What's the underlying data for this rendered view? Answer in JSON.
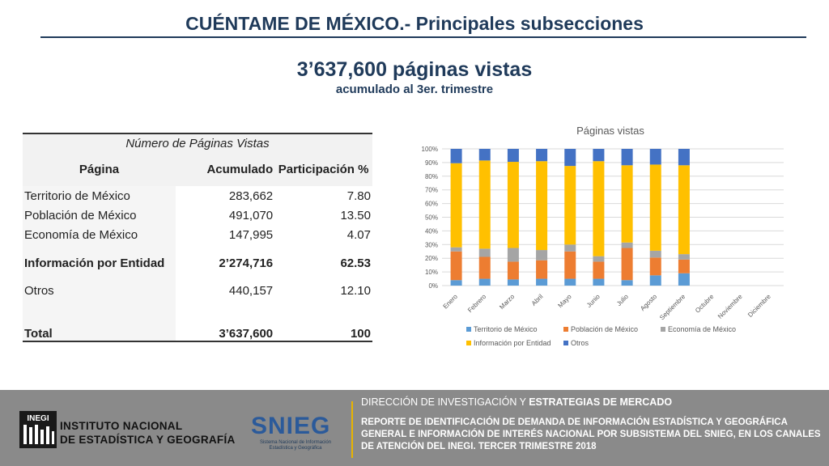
{
  "header": {
    "title": "CUÉNTAME DE MÉXICO.- Principales subsecciones",
    "headline": "3’637,600 páginas vistas",
    "subline": "acumulado al 3er. trimestre"
  },
  "table": {
    "group_header": "Número de Páginas Vistas",
    "columns": [
      "Página",
      "Acumulado",
      "Participación %"
    ],
    "rows": [
      {
        "page": "Territorio de México",
        "acumulado": "283,662",
        "participacion": "7.80"
      },
      {
        "page": "Población de México",
        "acumulado": "491,070",
        "participacion": "13.50"
      },
      {
        "page": "Economía de México",
        "acumulado": "147,995",
        "participacion": "4.07"
      },
      {
        "page": "Información por Entidad",
        "acumulado": "2’274,716",
        "participacion": "62.53"
      },
      {
        "page": "Otros",
        "acumulado": "440,157",
        "participacion": "12.10"
      }
    ],
    "total": {
      "page": "Total",
      "acumulado": "3’637,600",
      "participacion": "100"
    }
  },
  "chart_data": {
    "type": "bar",
    "stacked": "percent",
    "title": "Páginas vistas",
    "categories": [
      "Enero",
      "Febrero",
      "Marzo",
      "Abril",
      "Mayo",
      "Junio",
      "Julio",
      "Agosto",
      "Septiembre",
      "Octubre",
      "Noviembre",
      "Diciembre"
    ],
    "ylim": [
      0,
      100
    ],
    "yticks": [
      "0%",
      "10%",
      "20%",
      "30%",
      "40%",
      "50%",
      "60%",
      "70%",
      "80%",
      "90%",
      "100%"
    ],
    "legend_position": "bottom",
    "grid": true,
    "series": [
      {
        "name": "Territorio de México",
        "color": "#5b9bd5",
        "values": [
          4,
          5,
          4.5,
          5,
          5,
          5,
          4,
          7.5,
          9,
          null,
          null,
          null
        ]
      },
      {
        "name": "Población de México",
        "color": "#ed7d31",
        "values": [
          21,
          16,
          13,
          13.5,
          20,
          12.5,
          23.5,
          13,
          10,
          null,
          null,
          null
        ]
      },
      {
        "name": "Economía de México",
        "color": "#a5a5a5",
        "values": [
          3,
          6,
          10,
          7.5,
          5,
          4,
          4,
          5,
          4,
          null,
          null,
          null
        ]
      },
      {
        "name": "Información por Entidad",
        "color": "#ffc000",
        "values": [
          61.5,
          64.5,
          63,
          65,
          57.5,
          69.5,
          56.5,
          63,
          65,
          null,
          null,
          null
        ]
      },
      {
        "name": "Otros",
        "color": "#4472c4",
        "values": [
          10.5,
          8.5,
          9.5,
          9,
          12.5,
          9,
          12,
          11.5,
          12,
          null,
          null,
          null
        ]
      }
    ]
  },
  "footer": {
    "logo_box": "INEGI",
    "institute_line1": "INSTITUTO NACIONAL",
    "institute_line2": "DE ESTADÍSTICA Y GEOGRAFÍA",
    "snieg": "SNIEG",
    "snieg_sub": "Sistema Nacional de Información Estadística y Geográfica",
    "direction_thin": "DIRECCIÓN DE INVESTIGACIÓN Y ",
    "direction_bold": "ESTRATEGIAS DE MERCADO",
    "report": "REPORTE DE IDENTIFICACIÓN DE DEMANDA DE INFORMACIÓN ESTADÍSTICA Y GEOGRÁFICA GENERAL E INFORMACIÓN DE INTERÉS NACIONAL POR SUBSISTEMA DEL SNIEG, EN LOS CANALES DE ATENCIÓN DEL INEGI. TERCER TRIMESTRE 2018"
  }
}
